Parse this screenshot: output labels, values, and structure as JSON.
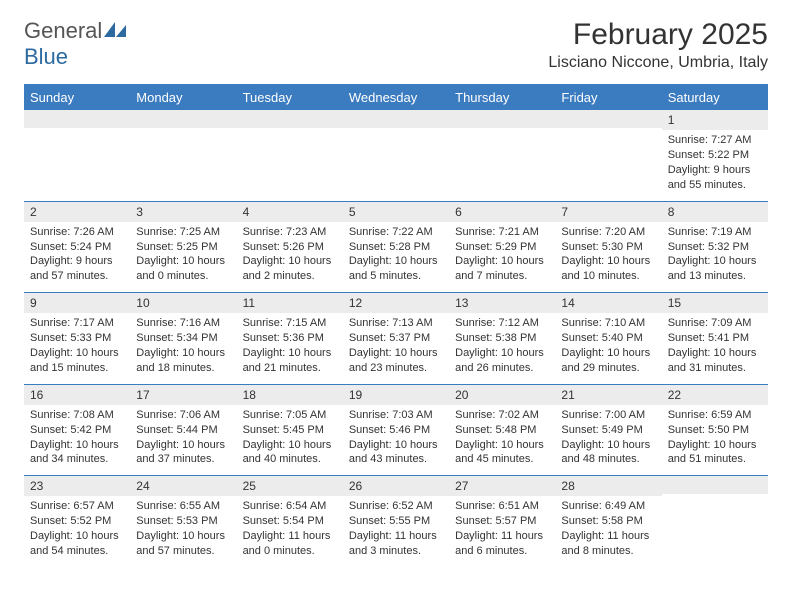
{
  "logo": {
    "text1": "General",
    "text2": "Blue"
  },
  "title": "February 2025",
  "location": "Lisciano Niccone, Umbria, Italy",
  "colors": {
    "header_bg": "#3b7bbf",
    "header_text": "#ffffff",
    "daynum_bg": "#ececec",
    "border": "#3b7bbf",
    "body_text": "#333333",
    "logo_gray": "#555555",
    "logo_blue": "#2c6aa0"
  },
  "day_names": [
    "Sunday",
    "Monday",
    "Tuesday",
    "Wednesday",
    "Thursday",
    "Friday",
    "Saturday"
  ],
  "weeks": [
    [
      {
        "n": "",
        "sr": "",
        "ss": "",
        "d1": "",
        "d2": ""
      },
      {
        "n": "",
        "sr": "",
        "ss": "",
        "d1": "",
        "d2": ""
      },
      {
        "n": "",
        "sr": "",
        "ss": "",
        "d1": "",
        "d2": ""
      },
      {
        "n": "",
        "sr": "",
        "ss": "",
        "d1": "",
        "d2": ""
      },
      {
        "n": "",
        "sr": "",
        "ss": "",
        "d1": "",
        "d2": ""
      },
      {
        "n": "",
        "sr": "",
        "ss": "",
        "d1": "",
        "d2": ""
      },
      {
        "n": "1",
        "sr": "Sunrise: 7:27 AM",
        "ss": "Sunset: 5:22 PM",
        "d1": "Daylight: 9 hours",
        "d2": "and 55 minutes."
      }
    ],
    [
      {
        "n": "2",
        "sr": "Sunrise: 7:26 AM",
        "ss": "Sunset: 5:24 PM",
        "d1": "Daylight: 9 hours",
        "d2": "and 57 minutes."
      },
      {
        "n": "3",
        "sr": "Sunrise: 7:25 AM",
        "ss": "Sunset: 5:25 PM",
        "d1": "Daylight: 10 hours",
        "d2": "and 0 minutes."
      },
      {
        "n": "4",
        "sr": "Sunrise: 7:23 AM",
        "ss": "Sunset: 5:26 PM",
        "d1": "Daylight: 10 hours",
        "d2": "and 2 minutes."
      },
      {
        "n": "5",
        "sr": "Sunrise: 7:22 AM",
        "ss": "Sunset: 5:28 PM",
        "d1": "Daylight: 10 hours",
        "d2": "and 5 minutes."
      },
      {
        "n": "6",
        "sr": "Sunrise: 7:21 AM",
        "ss": "Sunset: 5:29 PM",
        "d1": "Daylight: 10 hours",
        "d2": "and 7 minutes."
      },
      {
        "n": "7",
        "sr": "Sunrise: 7:20 AM",
        "ss": "Sunset: 5:30 PM",
        "d1": "Daylight: 10 hours",
        "d2": "and 10 minutes."
      },
      {
        "n": "8",
        "sr": "Sunrise: 7:19 AM",
        "ss": "Sunset: 5:32 PM",
        "d1": "Daylight: 10 hours",
        "d2": "and 13 minutes."
      }
    ],
    [
      {
        "n": "9",
        "sr": "Sunrise: 7:17 AM",
        "ss": "Sunset: 5:33 PM",
        "d1": "Daylight: 10 hours",
        "d2": "and 15 minutes."
      },
      {
        "n": "10",
        "sr": "Sunrise: 7:16 AM",
        "ss": "Sunset: 5:34 PM",
        "d1": "Daylight: 10 hours",
        "d2": "and 18 minutes."
      },
      {
        "n": "11",
        "sr": "Sunrise: 7:15 AM",
        "ss": "Sunset: 5:36 PM",
        "d1": "Daylight: 10 hours",
        "d2": "and 21 minutes."
      },
      {
        "n": "12",
        "sr": "Sunrise: 7:13 AM",
        "ss": "Sunset: 5:37 PM",
        "d1": "Daylight: 10 hours",
        "d2": "and 23 minutes."
      },
      {
        "n": "13",
        "sr": "Sunrise: 7:12 AM",
        "ss": "Sunset: 5:38 PM",
        "d1": "Daylight: 10 hours",
        "d2": "and 26 minutes."
      },
      {
        "n": "14",
        "sr": "Sunrise: 7:10 AM",
        "ss": "Sunset: 5:40 PM",
        "d1": "Daylight: 10 hours",
        "d2": "and 29 minutes."
      },
      {
        "n": "15",
        "sr": "Sunrise: 7:09 AM",
        "ss": "Sunset: 5:41 PM",
        "d1": "Daylight: 10 hours",
        "d2": "and 31 minutes."
      }
    ],
    [
      {
        "n": "16",
        "sr": "Sunrise: 7:08 AM",
        "ss": "Sunset: 5:42 PM",
        "d1": "Daylight: 10 hours",
        "d2": "and 34 minutes."
      },
      {
        "n": "17",
        "sr": "Sunrise: 7:06 AM",
        "ss": "Sunset: 5:44 PM",
        "d1": "Daylight: 10 hours",
        "d2": "and 37 minutes."
      },
      {
        "n": "18",
        "sr": "Sunrise: 7:05 AM",
        "ss": "Sunset: 5:45 PM",
        "d1": "Daylight: 10 hours",
        "d2": "and 40 minutes."
      },
      {
        "n": "19",
        "sr": "Sunrise: 7:03 AM",
        "ss": "Sunset: 5:46 PM",
        "d1": "Daylight: 10 hours",
        "d2": "and 43 minutes."
      },
      {
        "n": "20",
        "sr": "Sunrise: 7:02 AM",
        "ss": "Sunset: 5:48 PM",
        "d1": "Daylight: 10 hours",
        "d2": "and 45 minutes."
      },
      {
        "n": "21",
        "sr": "Sunrise: 7:00 AM",
        "ss": "Sunset: 5:49 PM",
        "d1": "Daylight: 10 hours",
        "d2": "and 48 minutes."
      },
      {
        "n": "22",
        "sr": "Sunrise: 6:59 AM",
        "ss": "Sunset: 5:50 PM",
        "d1": "Daylight: 10 hours",
        "d2": "and 51 minutes."
      }
    ],
    [
      {
        "n": "23",
        "sr": "Sunrise: 6:57 AM",
        "ss": "Sunset: 5:52 PM",
        "d1": "Daylight: 10 hours",
        "d2": "and 54 minutes."
      },
      {
        "n": "24",
        "sr": "Sunrise: 6:55 AM",
        "ss": "Sunset: 5:53 PM",
        "d1": "Daylight: 10 hours",
        "d2": "and 57 minutes."
      },
      {
        "n": "25",
        "sr": "Sunrise: 6:54 AM",
        "ss": "Sunset: 5:54 PM",
        "d1": "Daylight: 11 hours",
        "d2": "and 0 minutes."
      },
      {
        "n": "26",
        "sr": "Sunrise: 6:52 AM",
        "ss": "Sunset: 5:55 PM",
        "d1": "Daylight: 11 hours",
        "d2": "and 3 minutes."
      },
      {
        "n": "27",
        "sr": "Sunrise: 6:51 AM",
        "ss": "Sunset: 5:57 PM",
        "d1": "Daylight: 11 hours",
        "d2": "and 6 minutes."
      },
      {
        "n": "28",
        "sr": "Sunrise: 6:49 AM",
        "ss": "Sunset: 5:58 PM",
        "d1": "Daylight: 11 hours",
        "d2": "and 8 minutes."
      },
      {
        "n": "",
        "sr": "",
        "ss": "",
        "d1": "",
        "d2": ""
      }
    ]
  ]
}
